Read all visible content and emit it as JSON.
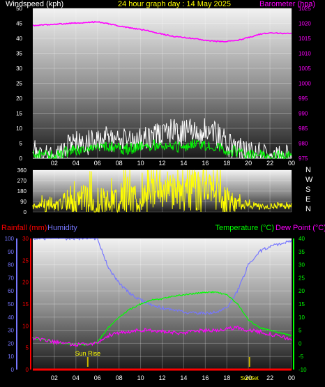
{
  "header": {
    "left_title": "Windspeed (kph)",
    "center_title": "24 hour graph day : 14 May 2025",
    "right_title": "Barometer (hpa)"
  },
  "colors": {
    "background": "#000000",
    "barometer": "#ff00ff",
    "wind_gust": "#ffffff",
    "wind_avg": "#00ff00",
    "wind_direction": "#ffff00",
    "temperature": "#00ff00",
    "dew_point": "#ff00ff",
    "humidity": "#7777ff",
    "rainfall": "#ff0000",
    "axis_text": "#ffffff",
    "time_text": "#ffff00"
  },
  "time_labels": [
    "02",
    "04",
    "06",
    "08",
    "10",
    "12",
    "14",
    "16",
    "18",
    "20",
    "22",
    "00"
  ],
  "compass_labels": [
    "N",
    "W",
    "S",
    "E",
    "N"
  ],
  "sun_events": {
    "rise_label": "Sun Rise",
    "set_label": "SunSet",
    "rise_hour": 5.1,
    "set_hour": 20.1
  },
  "chart_data": [
    {
      "type": "line",
      "name": "wind-barometer",
      "x_range": [
        0,
        24
      ],
      "y_left": {
        "label": "Windspeed (kph)",
        "range": [
          0,
          50
        ],
        "ticks": [
          0,
          5,
          10,
          15,
          20,
          25,
          30,
          35,
          40,
          45,
          50
        ]
      },
      "y_right": {
        "label": "Barometer (hpa)",
        "range": [
          975,
          1025
        ],
        "ticks": [
          975,
          980,
          985,
          990,
          995,
          1000,
          1005,
          1010,
          1015,
          1020,
          1025
        ]
      },
      "series": [
        {
          "key": "barometer",
          "axis": "right",
          "x": [
            0,
            1,
            2,
            3,
            4,
            5,
            6,
            7,
            8,
            9,
            10,
            11,
            12,
            13,
            14,
            15,
            16,
            17,
            18,
            19,
            20,
            21,
            22,
            23,
            24
          ],
          "values": [
            1019.3,
            1019.5,
            1019.7,
            1019.9,
            1020.1,
            1020.3,
            1020.5,
            1019.9,
            1019.1,
            1018.5,
            1018,
            1017.3,
            1016.4,
            1015.7,
            1015.3,
            1014.9,
            1014.3,
            1014,
            1014,
            1014.3,
            1015.3,
            1016.3,
            1016.9,
            1016.7,
            1016.6
          ]
        },
        {
          "key": "wind_gust",
          "axis": "left",
          "x": [
            0,
            1,
            2,
            3,
            4,
            5,
            6,
            7,
            8,
            9,
            10,
            11,
            12,
            13,
            14,
            15,
            16,
            17,
            18,
            19,
            20,
            21,
            22,
            23,
            24
          ],
          "values": [
            4,
            3,
            2,
            5,
            8,
            7,
            8,
            9,
            7,
            8,
            9,
            10,
            10,
            11,
            10,
            12,
            11,
            10,
            7,
            5,
            3,
            3,
            2,
            2,
            2
          ]
        },
        {
          "key": "wind_avg",
          "axis": "left",
          "x": [
            0,
            1,
            2,
            3,
            4,
            5,
            6,
            7,
            8,
            9,
            10,
            11,
            12,
            13,
            14,
            15,
            16,
            17,
            18,
            19,
            20,
            21,
            22,
            23,
            24
          ],
          "values": [
            1,
            1,
            0.5,
            2,
            3,
            3,
            4,
            4,
            3,
            3,
            4,
            4,
            5,
            4,
            4,
            5,
            4,
            4,
            3,
            2,
            1,
            1,
            0.5,
            0.5,
            0.5
          ]
        }
      ]
    },
    {
      "type": "line",
      "name": "wind-direction",
      "x_range": [
        0,
        24
      ],
      "y_left": {
        "range": [
          0,
          360
        ],
        "ticks": [
          0,
          90,
          180,
          270,
          360
        ]
      },
      "series": [
        {
          "key": "wind_direction",
          "x": [
            0,
            1,
            2,
            3,
            4,
            5,
            6,
            7,
            8,
            9,
            10,
            11,
            12,
            13,
            14,
            15,
            16,
            17,
            18,
            19,
            20,
            21,
            22,
            23,
            24
          ],
          "values": [
            40,
            60,
            50,
            70,
            90,
            120,
            80,
            100,
            110,
            150,
            90,
            130,
            200,
            160,
            180,
            200,
            150,
            190,
            90,
            70,
            60,
            50,
            40,
            60,
            50
          ],
          "spread": [
            20,
            60,
            40,
            60,
            120,
            150,
            160,
            100,
            160,
            170,
            150,
            160,
            180,
            180,
            180,
            180,
            170,
            170,
            140,
            60,
            30,
            30,
            20,
            30,
            30
          ]
        }
      ]
    },
    {
      "type": "line",
      "name": "temperature-humidity",
      "x_range": [
        0,
        24
      ],
      "y_left": {
        "label": "Humidity",
        "range": [
          0,
          100
        ],
        "ticks": [
          0,
          10,
          20,
          30,
          40,
          50,
          60,
          70,
          80,
          90,
          100
        ]
      },
      "y_left_inner": {
        "label": "Rainfall (mm)",
        "range": [
          0,
          30
        ],
        "ticks": [
          0,
          5,
          10,
          15,
          20,
          25,
          30
        ]
      },
      "y_right": {
        "label": "Temperature (°C)",
        "range": [
          -10,
          40
        ],
        "ticks": [
          -10,
          -5,
          0,
          5,
          10,
          15,
          20,
          25,
          30,
          35,
          40
        ]
      },
      "right_extra_label": "Dew Point (°C)",
      "series": [
        {
          "key": "humidity",
          "axis": "left",
          "x": [
            0,
            1,
            2,
            3,
            4,
            5,
            6,
            7,
            8,
            9,
            10,
            11,
            12,
            13,
            14,
            15,
            16,
            17,
            18,
            19,
            20,
            21,
            22,
            23,
            24
          ],
          "values": [
            100,
            100,
            100,
            100,
            100,
            100,
            100,
            78,
            66,
            58,
            53,
            49,
            47,
            45,
            44,
            43,
            43,
            44,
            47,
            60,
            80,
            90,
            94,
            96,
            98
          ]
        },
        {
          "key": "temperature",
          "axis": "right",
          "x": [
            0,
            1,
            2,
            3,
            4,
            5,
            6,
            7,
            8,
            9,
            10,
            11,
            12,
            13,
            14,
            15,
            16,
            17,
            18,
            19,
            20,
            21,
            22,
            23,
            24
          ],
          "values": [
            2,
            1.5,
            0.5,
            0,
            -0.5,
            -0.5,
            0.5,
            6,
            10,
            13,
            15,
            16.5,
            17,
            18,
            18.5,
            19,
            19.5,
            19.5,
            18.5,
            15,
            9,
            6,
            5,
            4,
            3
          ]
        },
        {
          "key": "dew_point",
          "axis": "right",
          "x": [
            0,
            1,
            2,
            3,
            4,
            5,
            6,
            7,
            8,
            9,
            10,
            11,
            12,
            13,
            14,
            15,
            16,
            17,
            18,
            19,
            20,
            21,
            22,
            23,
            24
          ],
          "values": [
            2,
            1.5,
            0.5,
            0,
            -0.5,
            -0.5,
            0.5,
            3,
            4,
            4.5,
            5,
            5,
            4.5,
            4,
            4,
            4.5,
            5,
            5,
            5.5,
            6,
            5,
            4.5,
            3.5,
            2.5,
            1.5
          ]
        },
        {
          "key": "rainfall",
          "axis": "left_inner",
          "x": [
            0,
            24
          ],
          "values": [
            0,
            0
          ]
        }
      ]
    }
  ]
}
